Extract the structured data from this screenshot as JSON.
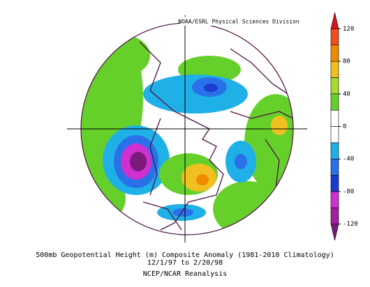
{
  "header": {
    "source": "NOAA/ESRL Physical Sciences Division"
  },
  "colorbar": {
    "range": [
      -140,
      140
    ],
    "ticks": [
      120,
      80,
      40,
      0,
      -40,
      -80,
      -120
    ],
    "colors": [
      "#7a1a7a",
      "#a020a0",
      "#d030d0",
      "#1a3ad0",
      "#2a70e8",
      "#20b0e8",
      "#ffffff",
      "#ffffff",
      "#66d02a",
      "#a8dc2a",
      "#f0c020",
      "#f08a00",
      "#f0501c",
      "#d8141c"
    ]
  },
  "caption": {
    "line1": "500mb Geopotential Height (m) Composite Anomaly (1981-2010 Climatology)",
    "line2": "12/1/97  to 2/20/98",
    "line3": "NCEP/NCAR Reanalysis"
  }
}
